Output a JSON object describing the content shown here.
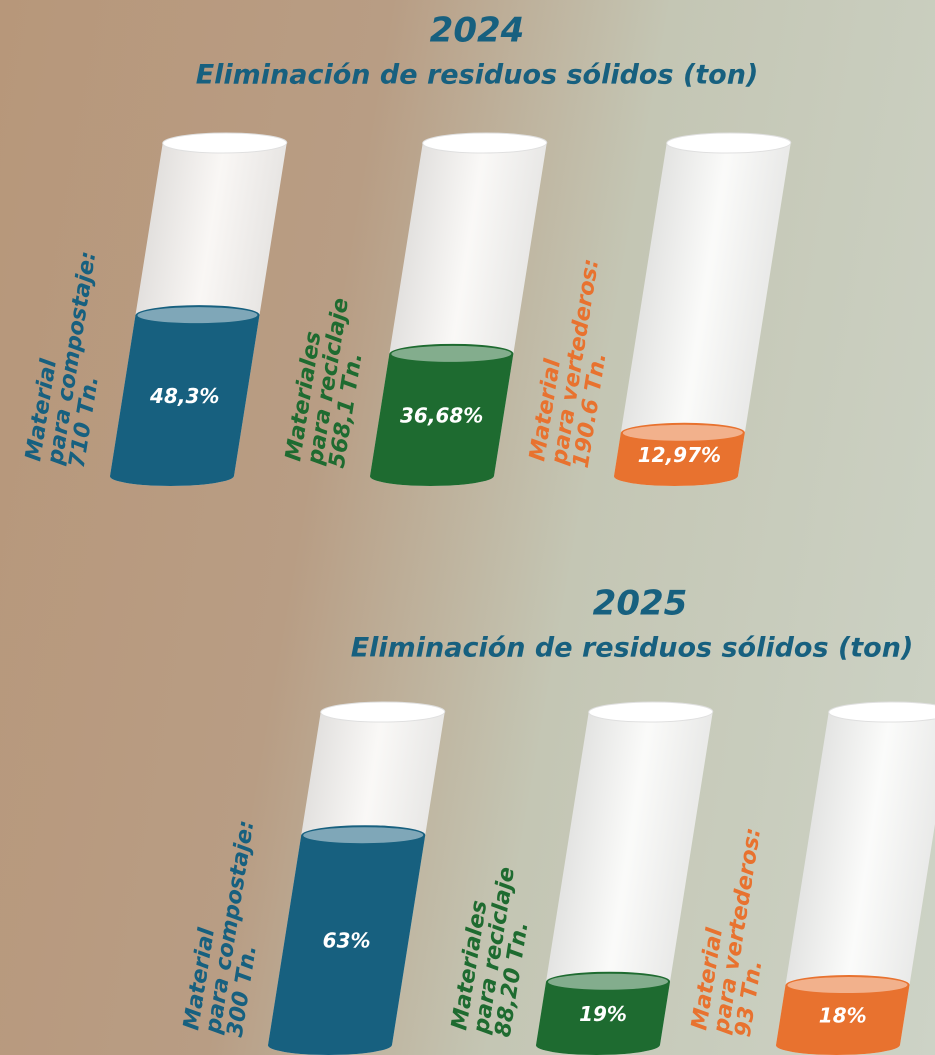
{
  "chart_data": [
    {
      "type": "cylinder",
      "title": "2024",
      "subtitle": "Eliminación de residuos sólidos (ton)",
      "categories": [
        [
          "Material",
          "para compostaje:"
        ],
        [
          "Materiales",
          "para reciclaje"
        ],
        [
          "Material",
          "para vertederos:"
        ]
      ],
      "amounts": [
        "710 Tn.",
        "568,1 Tn.",
        "190.6 Tn."
      ],
      "values": [
        48.3,
        36.68,
        12.97
      ],
      "value_labels": [
        "48,3%",
        "36,68%",
        "12,97%"
      ],
      "colors": [
        "#17607f",
        "#1e6b30",
        "#e8722f"
      ],
      "ylim": [
        0,
        100
      ]
    },
    {
      "type": "cylinder",
      "title": "2025",
      "subtitle": "Eliminación de residuos sólidos (ton)",
      "categories": [
        [
          "Material",
          "para compostaje:"
        ],
        [
          "Materiales",
          "para reciclaje"
        ],
        [
          "Material",
          "para vertederos:"
        ]
      ],
      "amounts": [
        "300 Tn.",
        "88,20 Tn.",
        "93 Tn."
      ],
      "values": [
        63,
        19,
        18
      ],
      "value_labels": [
        "63%",
        "19%",
        "18%"
      ],
      "colors": [
        "#17607f",
        "#1e6b30",
        "#e8722f"
      ],
      "ylim": [
        0,
        100
      ]
    }
  ]
}
